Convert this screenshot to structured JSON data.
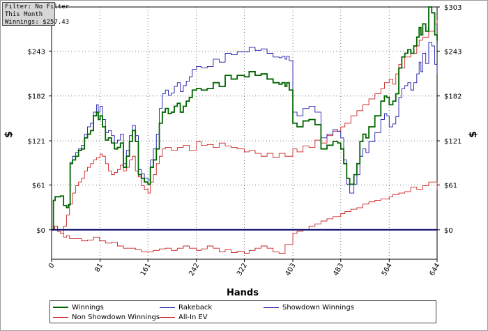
{
  "infobox": {
    "line1": "Filter: No Filter",
    "line2": "This Month",
    "line3": "Winnings: $257.43"
  },
  "chart_data": {
    "type": "line",
    "title": "",
    "xlabel": "Hands",
    "ylabel": "$",
    "xlim": [
      0,
      644
    ],
    "ylim": [
      -40,
      303
    ],
    "x_ticks": [
      0,
      81,
      161,
      242,
      322,
      403,
      483,
      564,
      644
    ],
    "y_ticks": [
      0,
      61,
      121,
      182,
      243,
      303
    ],
    "y_tick_labels": [
      "$0",
      "$61",
      "$121",
      "$182",
      "$243",
      "$303"
    ],
    "grid": true,
    "zero_line": true,
    "legend_position": "bottom",
    "series": [
      {
        "name": "Winnings",
        "color": "#006400",
        "x": [
          0,
          3,
          6,
          15,
          20,
          25,
          28,
          31,
          35,
          40,
          45,
          50,
          55,
          60,
          65,
          70,
          75,
          78,
          81,
          85,
          90,
          95,
          100,
          105,
          110,
          115,
          120,
          125,
          130,
          135,
          140,
          145,
          150,
          155,
          161,
          165,
          170,
          175,
          180,
          185,
          190,
          195,
          200,
          205,
          210,
          215,
          220,
          225,
          230,
          235,
          242,
          250,
          260,
          270,
          280,
          290,
          300,
          310,
          322,
          330,
          340,
          350,
          360,
          370,
          380,
          385,
          390,
          393,
          397,
          403,
          410,
          420,
          430,
          440,
          450,
          460,
          470,
          478,
          483,
          488,
          493,
          498,
          505,
          510,
          515,
          520,
          525,
          530,
          540,
          550,
          556,
          560,
          564,
          570,
          575,
          580,
          585,
          590,
          595,
          600,
          605,
          610,
          614,
          617,
          620,
          625,
          630,
          635,
          640,
          644
        ],
        "y": [
          0,
          40,
          45,
          46,
          33,
          30,
          34,
          90,
          95,
          100,
          108,
          110,
          125,
          130,
          135,
          155,
          160,
          150,
          155,
          140,
          122,
          125,
          118,
          110,
          112,
          118,
          85,
          100,
          120,
          135,
          120,
          75,
          70,
          65,
          62,
          85,
          95,
          110,
          145,
          160,
          165,
          158,
          160,
          168,
          172,
          160,
          168,
          175,
          180,
          190,
          192,
          190,
          192,
          200,
          195,
          210,
          205,
          210,
          208,
          215,
          210,
          212,
          205,
          200,
          198,
          200,
          195,
          200,
          190,
          145,
          140,
          148,
          150,
          143,
          110,
          115,
          120,
          118,
          110,
          90,
          70,
          62,
          75,
          90,
          120,
          130,
          125,
          140,
          155,
          175,
          182,
          180,
          170,
          175,
          185,
          220,
          235,
          240,
          245,
          240,
          250,
          262,
          275,
          265,
          280,
          270,
          303,
          295,
          265,
          257
        ]
      },
      {
        "name": "Rakeback",
        "color": "#1a1aaa",
        "x": [
          0,
          3,
          6,
          15,
          20,
          25,
          28,
          31,
          35,
          40,
          45,
          50,
          55,
          60,
          65,
          70,
          75,
          78,
          81,
          85,
          90,
          95,
          100,
          105,
          110,
          115,
          120,
          125,
          130,
          135,
          140,
          145,
          150,
          155,
          161,
          165,
          170,
          175,
          180,
          185,
          190,
          195,
          200,
          205,
          210,
          215,
          220,
          225,
          230,
          235,
          242,
          250,
          260,
          270,
          280,
          290,
          300,
          310,
          322,
          330,
          340,
          350,
          360,
          370,
          380,
          385,
          390,
          393,
          397,
          403,
          410,
          420,
          430,
          440,
          450,
          460,
          470,
          478,
          483,
          488,
          493,
          498,
          505,
          510,
          515,
          520,
          525,
          530,
          540,
          550,
          556,
          560,
          564,
          570,
          575,
          580,
          585,
          590,
          595,
          600,
          605,
          610,
          614,
          617,
          620,
          625,
          630,
          635,
          640,
          644
        ],
        "y": [
          0,
          40,
          45,
          46,
          33,
          30,
          34,
          92,
          100,
          105,
          110,
          115,
          130,
          140,
          145,
          160,
          170,
          160,
          168,
          150,
          132,
          135,
          128,
          118,
          122,
          130,
          90,
          108,
          128,
          142,
          128,
          82,
          76,
          70,
          68,
          95,
          110,
          130,
          165,
          185,
          190,
          183,
          186,
          195,
          200,
          188,
          196,
          202,
          208,
          218,
          222,
          220,
          222,
          232,
          228,
          240,
          238,
          242,
          242,
          248,
          244,
          246,
          240,
          235,
          234,
          236,
          232,
          236,
          230,
          160,
          155,
          165,
          168,
          160,
          125,
          130,
          136,
          134,
          125,
          95,
          62,
          50,
          62,
          75,
          100,
          110,
          105,
          120,
          132,
          150,
          158,
          155,
          140,
          144,
          154,
          180,
          192,
          196,
          200,
          190,
          200,
          212,
          228,
          215,
          240,
          226,
          255,
          250,
          225,
          212
        ]
      },
      {
        "name": "Showdown Winnings",
        "color": "#1a1aaa",
        "x": [
          0,
          644
        ],
        "y": [
          0,
          0
        ]
      },
      {
        "name": "Non Showdown Winnings",
        "color": "#cc2222",
        "x": [
          0,
          5,
          10,
          15,
          20,
          25,
          30,
          40,
          50,
          60,
          70,
          80,
          90,
          100,
          110,
          120,
          130,
          140,
          150,
          161,
          170,
          180,
          190,
          200,
          210,
          220,
          230,
          242,
          250,
          260,
          270,
          280,
          290,
          300,
          310,
          322,
          330,
          340,
          350,
          360,
          370,
          380,
          390,
          403,
          410,
          420,
          430,
          440,
          450,
          460,
          470,
          483,
          490,
          500,
          510,
          520,
          530,
          540,
          550,
          564,
          570,
          580,
          590,
          600,
          610,
          620,
          630,
          644
        ],
        "y": [
          0,
          5,
          -2,
          -5,
          -10,
          -8,
          -12,
          -12,
          -15,
          -14,
          -10,
          -15,
          -18,
          -17,
          -22,
          -25,
          -25,
          -27,
          -30,
          -30,
          -28,
          -26,
          -25,
          -28,
          -25,
          -22,
          -25,
          -28,
          -26,
          -22,
          -25,
          -30,
          -27,
          -31,
          -29,
          -32,
          -28,
          -25,
          -22,
          -25,
          -30,
          -32,
          -20,
          -5,
          -2,
          0,
          5,
          8,
          12,
          15,
          18,
          22,
          25,
          28,
          30,
          35,
          38,
          40,
          42,
          45,
          48,
          50,
          52,
          58,
          55,
          60,
          65,
          55
        ]
      },
      {
        "name": "All-In EV",
        "color": "#cc2222",
        "x": [
          0,
          5,
          10,
          15,
          20,
          25,
          30,
          35,
          40,
          45,
          50,
          55,
          60,
          65,
          70,
          75,
          81,
          85,
          90,
          95,
          100,
          105,
          110,
          115,
          120,
          125,
          130,
          135,
          140,
          145,
          150,
          155,
          161,
          165,
          170,
          175,
          180,
          185,
          190,
          200,
          210,
          220,
          230,
          242,
          250,
          260,
          270,
          280,
          290,
          300,
          310,
          322,
          330,
          340,
          350,
          360,
          370,
          380,
          390,
          403,
          410,
          420,
          430,
          440,
          450,
          460,
          470,
          483,
          490,
          500,
          510,
          520,
          530,
          540,
          550,
          556,
          564,
          570,
          575,
          580,
          585,
          590,
          600,
          610,
          614,
          620,
          630,
          640,
          644
        ],
        "y": [
          0,
          5,
          -2,
          -5,
          5,
          20,
          35,
          50,
          60,
          65,
          70,
          80,
          85,
          90,
          95,
          98,
          103,
          100,
          90,
          80,
          75,
          78,
          82,
          88,
          80,
          85,
          95,
          100,
          80,
          72,
          60,
          55,
          50,
          65,
          75,
          90,
          100,
          110,
          112,
          108,
          112,
          115,
          108,
          120,
          115,
          116,
          112,
          118,
          114,
          112,
          110,
          106,
          108,
          104,
          100,
          104,
          98,
          104,
          100,
          110,
          106,
          114,
          112,
          122,
          118,
          128,
          134,
          140,
          145,
          155,
          162,
          170,
          178,
          185,
          192,
          200,
          205,
          198,
          212,
          225,
          220,
          235,
          240,
          250,
          258,
          262,
          270,
          280,
          285
        ]
      }
    ]
  },
  "legend": [
    {
      "label": "Winnings",
      "color": "#006400",
      "weight": 2
    },
    {
      "label": "Rakeback",
      "color": "#1a1aaa",
      "weight": 1
    },
    {
      "label": "Showdown Winnings",
      "color": "#1a1aaa",
      "weight": 1
    },
    {
      "label": "Non Showdown Winnings",
      "color": "#cc2222",
      "weight": 1
    },
    {
      "label": "All-In EV",
      "color": "#cc2222",
      "weight": 1
    }
  ]
}
